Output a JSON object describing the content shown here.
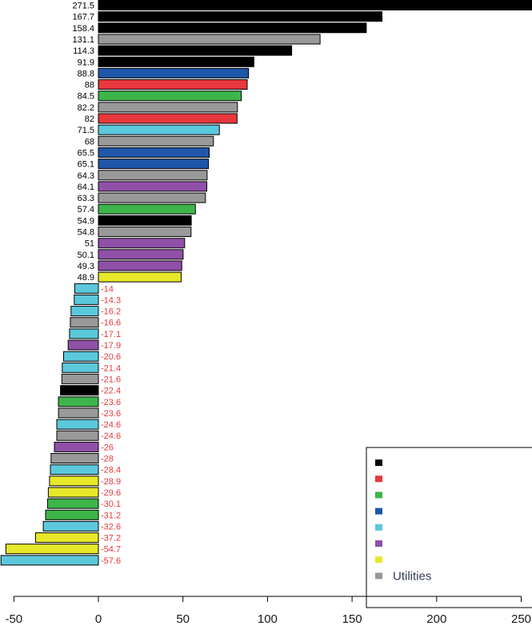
{
  "chart_data": {
    "type": "bar",
    "orientation": "horizontal",
    "xlim": [
      -60,
      255
    ],
    "x_ticks": [
      -50,
      0,
      50,
      100,
      150,
      200,
      250
    ],
    "x_tick_labels": [
      "-50",
      "0",
      "50",
      "100",
      "150",
      "200",
      "250"
    ],
    "value_labels": [
      "271.5",
      "167.7",
      "158.4",
      "131.1",
      "114.3",
      "91.9",
      "88.8",
      "88",
      "84.5",
      "82.2",
      "82",
      "71.5",
      "68",
      "65.5",
      "65.1",
      "64.3",
      "64.1",
      "63.3",
      "57.4",
      "54.9",
      "54.8",
      "51",
      "50.1",
      "49.3",
      "48.9",
      "-14",
      "-14.3",
      "-16.2",
      "-16.6",
      "-17.1",
      "-17.9",
      "-20.6",
      "-21.4",
      "-21.6",
      "-22.4",
      "-23.6",
      "-23.6",
      "-24.6",
      "-24.6",
      "-26",
      "-28",
      "-28.4",
      "-28.9",
      "-29.6",
      "-30.1",
      "-31.2",
      "-32.6",
      "-37.2",
      "-54.7",
      "-57.6"
    ],
    "values": [
      271.5,
      167.7,
      158.4,
      131.1,
      114.3,
      91.9,
      88.8,
      88,
      84.5,
      82.2,
      82,
      71.5,
      68,
      65.5,
      65.1,
      64.3,
      64.1,
      63.3,
      57.4,
      54.9,
      54.8,
      51,
      50.1,
      49.3,
      48.9,
      -14,
      -14.3,
      -16.2,
      -16.6,
      -17.1,
      -17.9,
      -20.6,
      -21.4,
      -21.6,
      -22.4,
      -23.6,
      -23.6,
      -24.6,
      -24.6,
      -26,
      -28,
      -28.4,
      -28.9,
      -29.6,
      -30.1,
      -31.2,
      -32.6,
      -37.2,
      -54.7,
      -57.6
    ],
    "color_groups": [
      "black",
      "black",
      "black",
      "gray",
      "black",
      "black",
      "blue",
      "red",
      "green",
      "gray",
      "red",
      "cyan",
      "gray",
      "blue",
      "blue",
      "gray",
      "purple",
      "gray",
      "green",
      "black",
      "gray",
      "purple",
      "purple",
      "purple",
      "yellow",
      "cyan",
      "cyan",
      "cyan",
      "gray",
      "cyan",
      "purple",
      "cyan",
      "cyan",
      "gray",
      "black",
      "green",
      "gray",
      "cyan",
      "gray",
      "purple",
      "gray",
      "cyan",
      "yellow",
      "yellow",
      "green",
      "green",
      "cyan",
      "yellow",
      "yellow",
      "cyan"
    ],
    "colors": {
      "black": "#000000",
      "red": "#e8383d",
      "green": "#3db54a",
      "blue": "#1f56a8",
      "cyan": "#5bc8dc",
      "purple": "#9050a8",
      "yellow": "#e8e82a",
      "gray": "#999999"
    },
    "positive_label_color": "#000000",
    "negative_label_color": "#e8383d",
    "legend": {
      "placement": "bottom-right",
      "entries": [
        {
          "label": "",
          "color": "black"
        },
        {
          "label": "",
          "color": "red"
        },
        {
          "label": "",
          "color": "green"
        },
        {
          "label": "",
          "color": "blue"
        },
        {
          "label": "",
          "color": "cyan"
        },
        {
          "label": "",
          "color": "purple"
        },
        {
          "label": "",
          "color": "yellow"
        },
        {
          "label": "Utilities",
          "color": "gray"
        }
      ]
    },
    "title": "",
    "xlabel": "",
    "ylabel": ""
  }
}
